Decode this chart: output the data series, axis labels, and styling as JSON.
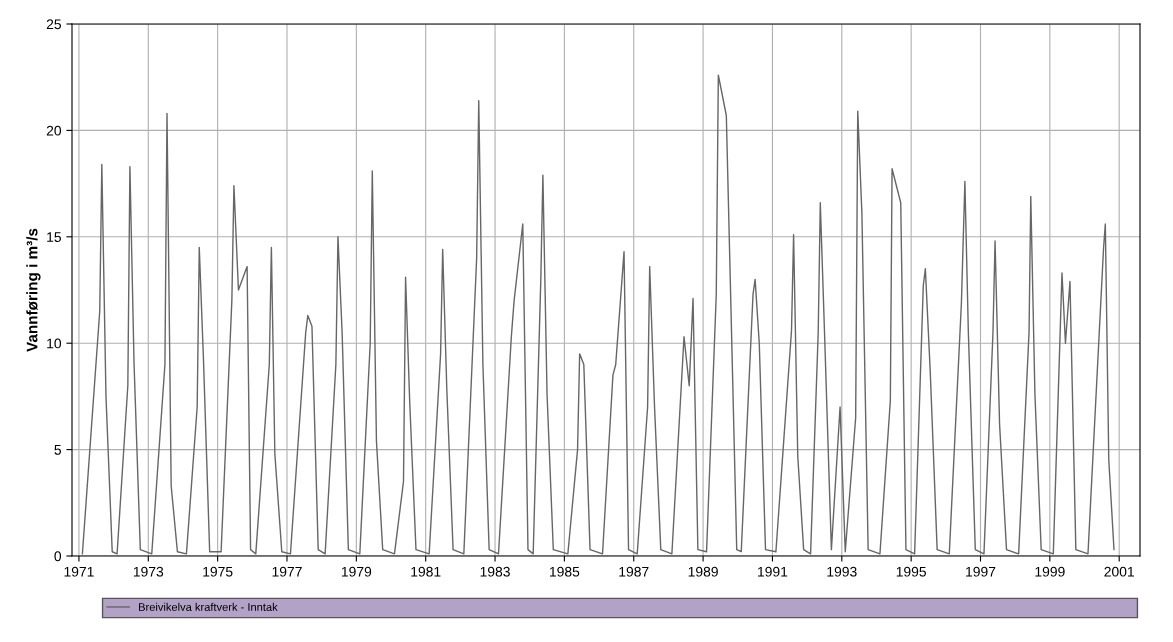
{
  "chart_data": {
    "type": "line",
    "ylabel": "Vannføring i m³/s",
    "xlim": [
      1970.8,
      2001.6
    ],
    "xticks": [
      1971,
      1973,
      1975,
      1977,
      1979,
      1981,
      1983,
      1985,
      1987,
      1989,
      1991,
      1993,
      1995,
      1997,
      1999,
      2001
    ],
    "ylim": [
      0,
      25
    ],
    "yticks": [
      0,
      5,
      10,
      15,
      20,
      25
    ],
    "grid": true,
    "legend": "bottom",
    "series": [
      {
        "name": "Breivikelva kraftverk - Inntak",
        "color": "#666666",
        "x": [
          1971.1,
          1971.6,
          1971.66,
          1971.78,
          1971.96,
          1972.1,
          1972.41,
          1972.47,
          1972.59,
          1972.77,
          1973.1,
          1973.48,
          1973.54,
          1973.66,
          1973.84,
          1974.1,
          1974.41,
          1974.47,
          1974.59,
          1974.77,
          1975.1,
          1975.41,
          1975.47,
          1975.6,
          1975.85,
          1975.95,
          1976.1,
          1976.49,
          1976.55,
          1976.65,
          1976.85,
          1977.1,
          1977.54,
          1977.6,
          1977.72,
          1977.9,
          1978.1,
          1978.41,
          1978.47,
          1978.59,
          1978.77,
          1979.1,
          1979.4,
          1979.46,
          1979.58,
          1979.76,
          1980.1,
          1980.36,
          1980.42,
          1980.54,
          1980.72,
          1981.1,
          1981.43,
          1981.49,
          1981.61,
          1981.79,
          1982.1,
          1982.47,
          1982.53,
          1982.65,
          1982.83,
          1983.1,
          1983.47,
          1983.55,
          1983.8,
          1983.95,
          1984.1,
          1984.32,
          1984.38,
          1984.5,
          1984.68,
          1985.1,
          1985.38,
          1985.44,
          1985.56,
          1985.74,
          1986.1,
          1986.4,
          1986.48,
          1986.72,
          1986.85,
          1987.1,
          1987.4,
          1987.46,
          1987.6,
          1987.78,
          1988.1,
          1988.45,
          1988.6,
          1988.71,
          1988.85,
          1989.1,
          1989.38,
          1989.44,
          1989.67,
          1989.85,
          1989.97,
          1990.1,
          1990.44,
          1990.5,
          1990.62,
          1990.8,
          1991.1,
          1991.55,
          1991.61,
          1991.73,
          1991.9,
          1992.1,
          1992.32,
          1992.38,
          1992.5,
          1992.7,
          1992.95,
          1993.1,
          1993.4,
          1993.46,
          1993.58,
          1993.76,
          1994.1,
          1994.4,
          1994.45,
          1994.7,
          1994.85,
          1995.1,
          1995.35,
          1995.41,
          1995.55,
          1995.75,
          1996.1,
          1996.45,
          1996.55,
          1996.65,
          1996.85,
          1997.1,
          1997.36,
          1997.42,
          1997.55,
          1997.75,
          1998.1,
          1998.4,
          1998.45,
          1998.57,
          1998.75,
          1999.1,
          1999.35,
          1999.45,
          1999.58,
          1999.75,
          2000.1,
          2000.55,
          2000.6,
          2000.7,
          2000.85
        ],
        "values": [
          0.1,
          11.5,
          18.4,
          7.5,
          0.2,
          0.1,
          8,
          18.3,
          9.0,
          0.3,
          0.1,
          9,
          20.8,
          3.3,
          0.2,
          0.1,
          7,
          14.5,
          9.3,
          0.2,
          0.2,
          12,
          17.4,
          12.5,
          13.6,
          0.3,
          0.1,
          9,
          14.5,
          4.8,
          0.2,
          0.1,
          10.5,
          11.3,
          10.8,
          0.3,
          0.1,
          9,
          15.0,
          10.5,
          0.3,
          0.1,
          10,
          18.1,
          5.4,
          0.3,
          0.1,
          3.5,
          13.1,
          7.2,
          0.3,
          0.1,
          9.5,
          14.4,
          7.8,
          0.3,
          0.1,
          14,
          21.4,
          9.0,
          0.3,
          0.1,
          10.3,
          12.0,
          15.6,
          0.3,
          0.1,
          13.0,
          17.9,
          7.6,
          0.3,
          0.1,
          5,
          9.5,
          9.0,
          0.3,
          0.1,
          8.5,
          9.0,
          14.3,
          0.3,
          0.1,
          7,
          13.6,
          7.0,
          0.3,
          0.1,
          10.3,
          8.0,
          12.1,
          0.3,
          0.2,
          12.3,
          22.6,
          20.7,
          8.5,
          0.3,
          0.2,
          12.3,
          13.0,
          10.0,
          0.3,
          0.2,
          10.6,
          15.1,
          4.7,
          0.3,
          0.1,
          10.5,
          16.6,
          10.6,
          0.3,
          7.0,
          0.2,
          6.5,
          20.9,
          16.1,
          0.3,
          0.1,
          7.3,
          18.2,
          16.6,
          0.3,
          0.1,
          12.7,
          13.5,
          8.7,
          0.3,
          0.1,
          11.9,
          17.6,
          10.5,
          0.3,
          0.1,
          10.5,
          14.8,
          6.2,
          0.3,
          0.1,
          10.5,
          16.9,
          7.6,
          0.3,
          0.1,
          13.3,
          10,
          12.9,
          0.3,
          0.1,
          14.5,
          15.6,
          4.5,
          0.3
        ]
      }
    ]
  }
}
